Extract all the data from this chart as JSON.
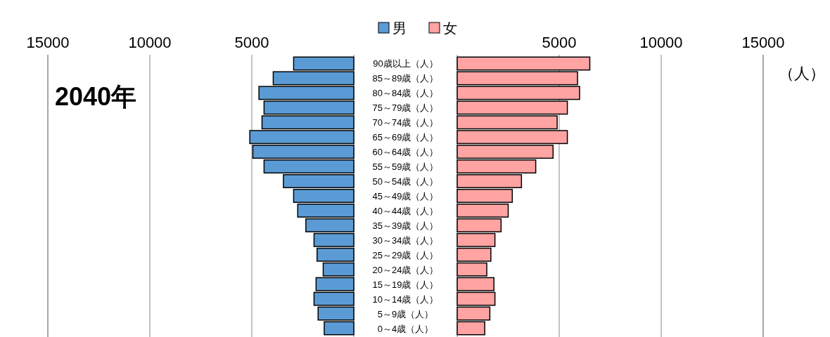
{
  "chart_data": [
    {
      "type": "bar",
      "orientation": "horizontal",
      "title": "2040年",
      "categories": [
        "90歳以上（人）",
        "85～89歳（人）",
        "80～84歳（人）",
        "75～79歳（人）",
        "70～74歳（人）",
        "65～69歳（人）",
        "60～64歳（人）",
        "55～59歳（人）",
        "50～54歳（人）",
        "45～49歳（人）",
        "40～44歳（人）",
        "35～39歳（人）",
        "30～34歳（人）",
        "25～29歳（人）",
        "20～24歳（人）",
        "15～19歳（人）",
        "10～14歳（人）",
        "5～9歳（人）",
        "0～4歳（人）"
      ],
      "series": [
        {
          "name": "男",
          "color": "#5b9bd5",
          "values": [
            2950,
            3950,
            4650,
            4400,
            4500,
            5100,
            4950,
            4400,
            3450,
            2950,
            2750,
            2350,
            1950,
            1800,
            1500,
            1850,
            1950,
            1750,
            1450
          ]
        }
      ],
      "xlim": [
        15000,
        0
      ],
      "xticks": [
        15000,
        10000,
        5000
      ],
      "grid": "x",
      "legend": "top"
    },
    {
      "type": "bar",
      "orientation": "horizontal",
      "xlabel": "（人）",
      "categories": [
        null,
        null,
        null,
        null,
        null,
        null,
        null,
        null,
        null,
        null,
        null,
        null,
        null,
        null,
        null,
        null,
        null,
        null,
        null
      ],
      "series": [
        {
          "name": "女",
          "color": "#ffa3a3",
          "values": [
            6500,
            5900,
            6000,
            5400,
            4900,
            5400,
            4700,
            3850,
            3150,
            2700,
            2500,
            2150,
            1850,
            1650,
            1450,
            1800,
            1850,
            1600,
            1350
          ]
        }
      ],
      "xlim": [
        0,
        15000
      ],
      "xticks": [
        5000,
        10000,
        15000
      ],
      "grid": "x",
      "legend": "top"
    }
  ]
}
